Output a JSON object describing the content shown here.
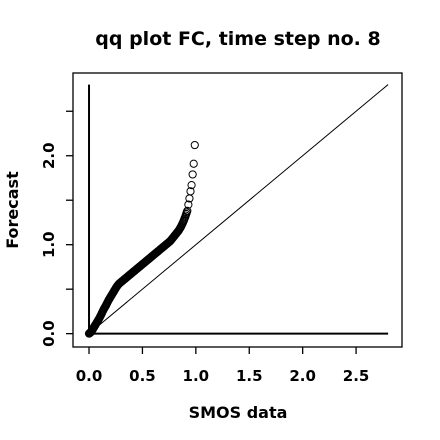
{
  "chart_data": {
    "type": "scatter",
    "title": "qq plot FC, time step no. 8",
    "xlabel": "SMOS data",
    "ylabel": "Forecast",
    "xlim": [
      -0.15,
      2.93
    ],
    "ylim": [
      -0.15,
      2.93
    ],
    "x_ticks": [
      "0.0",
      "0.5",
      "1.0",
      "1.5",
      "2.0",
      "2.5"
    ],
    "y_ticks": [
      "0.0",
      "1.0",
      "2.0"
    ],
    "y_minor_ticks": [
      0.5,
      1.5,
      2.5
    ],
    "reference_lines": {
      "identity": {
        "from": [
          0,
          0
        ],
        "to": [
          2.8,
          2.8
        ]
      },
      "horizontal_zero": {
        "y": 0,
        "x_range": [
          0,
          2.8
        ]
      },
      "vertical_zero": {
        "x": 0,
        "y_range": [
          0,
          2.8
        ]
      }
    },
    "series": [
      {
        "marker": "open-circle",
        "points": [
          [
            0.0,
            0.0
          ],
          [
            0.01,
            0.01
          ],
          [
            0.02,
            0.02
          ],
          [
            0.03,
            0.04
          ],
          [
            0.04,
            0.06
          ],
          [
            0.05,
            0.08
          ],
          [
            0.06,
            0.1
          ],
          [
            0.08,
            0.14
          ],
          [
            0.1,
            0.18
          ],
          [
            0.12,
            0.23
          ],
          [
            0.14,
            0.28
          ],
          [
            0.16,
            0.32
          ],
          [
            0.18,
            0.37
          ],
          [
            0.2,
            0.41
          ],
          [
            0.22,
            0.45
          ],
          [
            0.24,
            0.49
          ],
          [
            0.26,
            0.53
          ],
          [
            0.28,
            0.56
          ],
          [
            0.3,
            0.58
          ],
          [
            0.32,
            0.6
          ],
          [
            0.34,
            0.62
          ],
          [
            0.36,
            0.64
          ],
          [
            0.38,
            0.66
          ],
          [
            0.4,
            0.68
          ],
          [
            0.42,
            0.7
          ],
          [
            0.44,
            0.72
          ],
          [
            0.46,
            0.74
          ],
          [
            0.48,
            0.76
          ],
          [
            0.5,
            0.78
          ],
          [
            0.52,
            0.8
          ],
          [
            0.54,
            0.82
          ],
          [
            0.56,
            0.84
          ],
          [
            0.58,
            0.86
          ],
          [
            0.6,
            0.88
          ],
          [
            0.62,
            0.9
          ],
          [
            0.64,
            0.92
          ],
          [
            0.66,
            0.94
          ],
          [
            0.68,
            0.96
          ],
          [
            0.7,
            0.98
          ],
          [
            0.72,
            1.0
          ],
          [
            0.74,
            1.02
          ],
          [
            0.76,
            1.04
          ],
          [
            0.78,
            1.07
          ],
          [
            0.8,
            1.1
          ],
          [
            0.82,
            1.13
          ],
          [
            0.84,
            1.16
          ],
          [
            0.86,
            1.2
          ],
          [
            0.88,
            1.25
          ],
          [
            0.9,
            1.31
          ],
          [
            0.92,
            1.38
          ],
          [
            0.93,
            1.45
          ],
          [
            0.94,
            1.52
          ],
          [
            0.95,
            1.6
          ],
          [
            0.96,
            1.67
          ],
          [
            0.97,
            1.79
          ],
          [
            0.98,
            1.91
          ],
          [
            0.99,
            2.12
          ]
        ]
      }
    ]
  }
}
